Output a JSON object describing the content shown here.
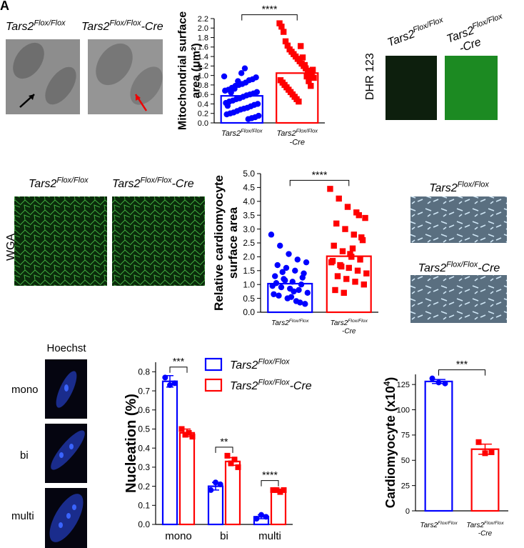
{
  "panel_letter": "A",
  "panels": {
    "em": {
      "labels": [
        {
          "gene": "Tars2",
          "allele": "Flox/Flox"
        },
        {
          "gene": "Tars2",
          "allele": "Flox/Flox",
          "suffix": "-Cre"
        }
      ]
    },
    "dhr": {
      "label": "DHR 123",
      "labels": [
        {
          "gene": "Tars2",
          "allele": "Flox/Flox"
        },
        {
          "gene": "Tars2",
          "allele": "Flox/Flox",
          "suffix": "-Cre"
        }
      ]
    },
    "wga": {
      "label": "WGA",
      "labels": [
        {
          "gene": "Tars2",
          "allele": "Flox/Flox"
        },
        {
          "gene": "Tars2",
          "allele": "Flox/Flox",
          "suffix": "-Cre"
        }
      ]
    },
    "culture": {
      "labels": [
        {
          "gene": "Tars2",
          "allele": "Flox/Flox"
        },
        {
          "gene": "Tars2",
          "allele": "Flox/Flox",
          "suffix": "-Cre"
        }
      ]
    },
    "hoechst": {
      "title": "Hoechst",
      "rows": [
        "mono",
        "bi",
        "multi"
      ]
    }
  },
  "chart_data": [
    {
      "type": "bar",
      "ylabel": [
        "Mitochondrial surface",
        "area (μm²)"
      ],
      "categories": [
        {
          "gene": "Tars2",
          "allele": "Flox/Flox"
        },
        {
          "gene": "Tars2",
          "allele": "Flox/Flox",
          "suffix": "-Cre"
        }
      ],
      "values": [
        0.57,
        1.05
      ],
      "colors": [
        "#0000ff",
        "#ff0000"
      ],
      "markers": [
        "circle",
        "square"
      ],
      "points": [
        [
          0.98,
          0.96,
          0.92,
          0.9,
          0.85,
          0.82,
          0.8,
          0.78,
          0.74,
          0.7,
          0.68,
          0.65,
          0.62,
          0.6,
          0.58,
          0.55,
          0.52,
          0.5,
          0.47,
          0.45,
          0.42,
          0.4,
          0.38,
          0.35,
          0.32,
          0.3,
          0.28,
          0.25,
          0.22,
          0.2,
          0.18,
          0.15,
          0.12,
          0.1,
          0.08,
          1.15,
          1.05,
          0.88,
          0.72,
          0.64,
          0.36
        ],
        [
          2.1,
          2.03,
          1.92,
          1.72,
          1.63,
          1.55,
          1.5,
          1.45,
          1.4,
          1.35,
          1.3,
          1.25,
          1.2,
          1.15,
          1.1,
          1.05,
          1.0,
          0.95,
          0.9,
          0.85,
          0.8,
          0.75,
          0.7,
          0.65,
          0.6,
          0.55,
          0.5,
          0.45,
          1.62,
          1.38,
          1.22,
          0.98,
          0.88,
          0.78,
          1.12
        ]
      ],
      "significance": "****",
      "ylim": [
        0,
        2.2
      ],
      "yticks": [
        {
          "value": 0,
          "label": "0.0"
        },
        0.2,
        0.4,
        0.6,
        0.8,
        {
          "value": 1,
          "label": "1.0"
        },
        1.2,
        1.4,
        1.6,
        1.8,
        {
          "value": 2,
          "label": "2.0"
        },
        2.2
      ]
    },
    {
      "type": "bar",
      "ylabel": [
        "Relative cardiomyocyte",
        "surface area"
      ],
      "categories": [
        {
          "gene": "Tars2",
          "allele": "Flox/Flox"
        },
        {
          "gene": "Tars2",
          "allele": "Flox/Flox",
          "suffix": "-Cre"
        }
      ],
      "values": [
        1.03,
        2.02
      ],
      "colors": [
        "#0000ff",
        "#ff0000"
      ],
      "markers": [
        "circle",
        "square"
      ],
      "points": [
        [
          2.8,
          2.4,
          2.1,
          1.9,
          1.8,
          1.7,
          1.6,
          1.5,
          1.4,
          1.3,
          1.2,
          1.1,
          1.0,
          0.95,
          0.9,
          0.85,
          0.8,
          0.7,
          0.6,
          0.5,
          0.4,
          0.3,
          1.05,
          1.15,
          0.75,
          1.25,
          0.65,
          1.45,
          0.55,
          0.35
        ],
        [
          4.45,
          4.1,
          3.8,
          3.6,
          3.4,
          3.2,
          3.0,
          2.8,
          2.6,
          2.4,
          2.2,
          2.0,
          1.9,
          1.8,
          1.7,
          1.6,
          1.5,
          1.4,
          1.3,
          1.2,
          1.1,
          1.0,
          0.8,
          0.7,
          2.3,
          2.7,
          1.85,
          1.65,
          2.1,
          3.5
        ]
      ],
      "significance": "****",
      "ylim": [
        0,
        5
      ],
      "yticks": [
        {
          "value": 0,
          "label": "0.0"
        },
        0.5,
        {
          "value": 1,
          "label": "1.0"
        },
        1.5,
        {
          "value": 2,
          "label": "2.0"
        },
        2.5,
        {
          "value": 3,
          "label": "3.0"
        },
        3.5,
        {
          "value": 4,
          "label": "4.0"
        },
        4.5,
        {
          "value": 5,
          "label": "5.0"
        }
      ]
    },
    {
      "type": "grouped_bar",
      "ylabel": [
        "Nucleation (%)"
      ],
      "categories": [
        "mono",
        "bi",
        "multi"
      ],
      "series": [
        {
          "name": {
            "gene": "Tars2",
            "allele": "Flox/Flox"
          },
          "color": "#0000ff",
          "marker": "circle",
          "values": [
            0.75,
            0.2,
            0.04
          ],
          "errors": [
            0.03,
            0.02,
            0.01
          ],
          "points": [
            [
              0.77,
              0.73,
              0.74
            ],
            [
              0.18,
              0.22,
              0.21
            ],
            [
              0.03,
              0.05,
              0.04
            ]
          ]
        },
        {
          "name": {
            "gene": "Tars2",
            "allele": "Flox/Flox",
            "suffix": "-Cre"
          },
          "color": "#ff0000",
          "marker": "square",
          "values": [
            0.48,
            0.33,
            0.18
          ],
          "errors": [
            0.02,
            0.02,
            0.005
          ],
          "points": [
            [
              0.5,
              0.47,
              0.48,
              0.46
            ],
            [
              0.36,
              0.32,
              0.34,
              0.3
            ],
            [
              0.18,
              0.18,
              0.17,
              0.18
            ]
          ]
        }
      ],
      "significance": [
        "***",
        "**",
        "****"
      ],
      "ylim": [
        0,
        0.85
      ],
      "yticks": [
        {
          "value": 0,
          "label": "0.0"
        },
        0.1,
        0.2,
        0.3,
        0.4,
        0.5,
        0.6,
        0.7,
        0.8
      ]
    },
    {
      "type": "bar",
      "ylabel": [
        {
          "text": "Cardiomyocyte (x10",
          "sup": "4",
          "end": ")"
        }
      ],
      "categories": [
        {
          "gene": "Tars2",
          "allele": "Flox/Flox"
        },
        {
          "gene": "Tars2",
          "allele": "Flox/Flox",
          "suffix": "-Cre"
        }
      ],
      "values": [
        128,
        61
      ],
      "errors": [
        2,
        5
      ],
      "colors": [
        "#0000ff",
        "#ff0000"
      ],
      "markers": [
        "circle",
        "square"
      ],
      "points": [
        [
          131,
          127,
          126
        ],
        [
          68,
          57,
          58
        ]
      ],
      "significance": "***",
      "ylim": [
        0,
        135
      ],
      "yticks": [
        0,
        25,
        50,
        75,
        100,
        125
      ]
    }
  ]
}
